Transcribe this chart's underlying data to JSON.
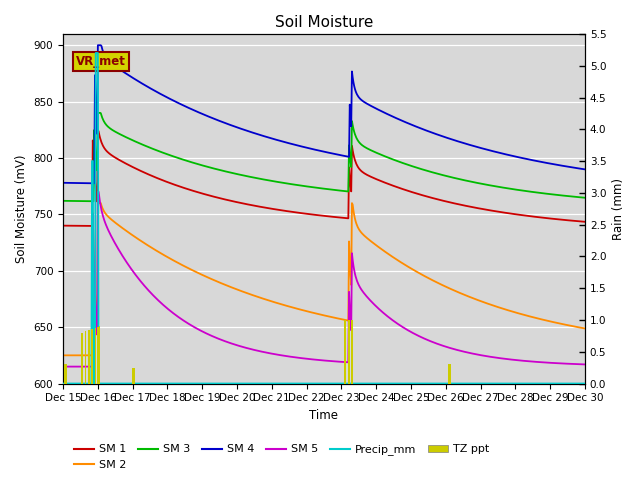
{
  "title": "Soil Moisture",
  "ylabel_left": "Soil Moisture (mV)",
  "ylabel_right": "Rain (mm)",
  "xlabel": "Time",
  "ylim_left": [
    600,
    910
  ],
  "ylim_right": [
    0.0,
    5.5
  ],
  "yticks_left": [
    600,
    650,
    700,
    750,
    800,
    850,
    900
  ],
  "yticks_right": [
    0.0,
    0.5,
    1.0,
    1.5,
    2.0,
    2.5,
    3.0,
    3.5,
    4.0,
    4.5,
    5.0,
    5.5
  ],
  "bg_color": "#d8d8d8",
  "fig_bg": "#ffffff",
  "annotation_text": "VR_met",
  "annotation_bg": "#d4d400",
  "annotation_border": "#8B0000",
  "sm1_color": "#cc0000",
  "sm2_color": "#ff8c00",
  "sm3_color": "#00bb00",
  "sm4_color": "#0000cc",
  "sm5_color": "#cc00cc",
  "precip_color": "#00cccc",
  "tz_color": "#cccc00",
  "legend_fontsize": 8,
  "title_fontsize": 11,
  "tick_label_size": 7.5
}
